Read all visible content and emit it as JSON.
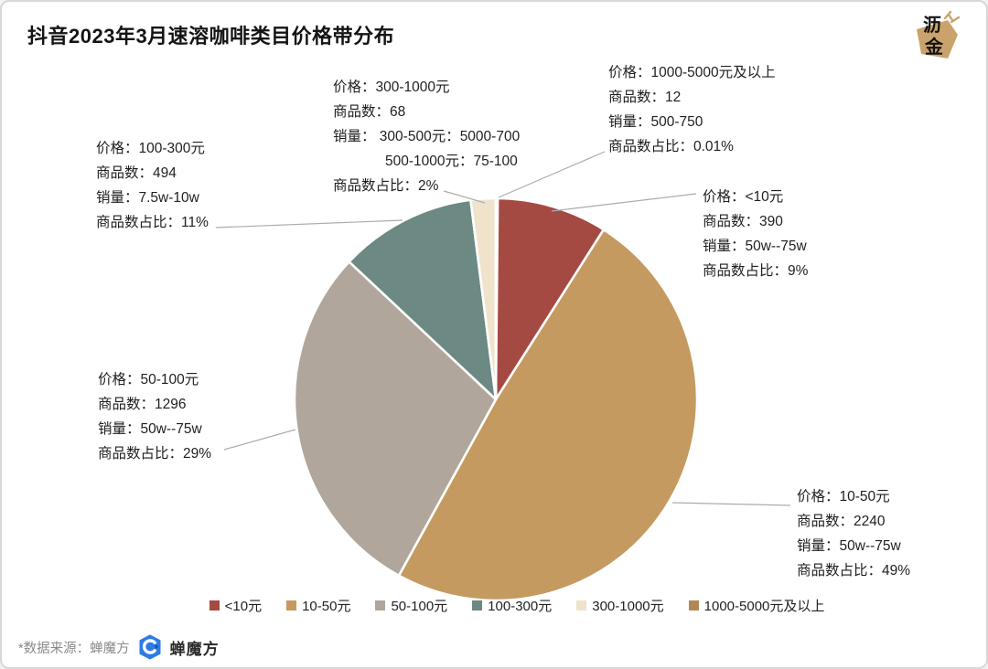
{
  "title": "抖音2023年3月速溶咖啡类目价格带分布",
  "logo": {
    "char1": "沥",
    "char2": "金"
  },
  "chart_data": {
    "type": "pie",
    "title": "抖音2023年3月速溶咖啡类目价格带分布",
    "legend_position": "bottom",
    "start_angle_deg_from_top": 0,
    "direction": "clockwise",
    "slices": [
      {
        "label": "<10元",
        "value_percent": 9,
        "color": "#A54A42",
        "items": 390,
        "sales": "50w--75w"
      },
      {
        "label": "10-50元",
        "value_percent": 49,
        "color": "#C49A60",
        "items": 2240,
        "sales": "50w--75w"
      },
      {
        "label": "50-100元",
        "value_percent": 29,
        "color": "#B0A69B",
        "items": 1296,
        "sales": "50w--75w"
      },
      {
        "label": "100-300元",
        "value_percent": 11,
        "color": "#6C8983",
        "items": 494,
        "sales": "7.5w-10w"
      },
      {
        "label": "300-1000元",
        "value_percent": 2,
        "color": "#EFE3CC",
        "items": 68,
        "sales": "300-500元：5000-700；500-1000元：75-100"
      },
      {
        "label": "1000-5000元及以上",
        "value_percent": 0.01,
        "color": "#B28756",
        "items": 12,
        "sales": "500-750"
      }
    ],
    "annotations": [
      {
        "id": "price-100-300",
        "lines": [
          "价格：100-300元",
          "商品数：494",
          "销量：7.5w-10w",
          "商品数占比：11%"
        ]
      },
      {
        "id": "price-300-1000",
        "lines": [
          "价格：300-1000元",
          "商品数：68",
          "销量： 300-500元：5000-700",
          "500-1000元：75-100",
          "商品数占比：2%"
        ]
      },
      {
        "id": "price-1000-5000",
        "lines": [
          "价格：1000-5000元及以上",
          "商品数：12",
          "销量：500-750",
          "商品数占比：0.01%"
        ]
      },
      {
        "id": "price-lt-10",
        "lines": [
          "价格：<10元",
          "商品数：390",
          "销量：50w--75w",
          "商品数占比：9%"
        ]
      },
      {
        "id": "price-50-100",
        "lines": [
          "价格：50-100元",
          "商品数：1296",
          "销量：50w--75w",
          "商品数占比：29%"
        ]
      },
      {
        "id": "price-10-50",
        "lines": [
          "价格：10-50元",
          "商品数：2240",
          "销量：50w--75w",
          "商品数占比：49%"
        ]
      }
    ]
  },
  "footer": {
    "source_note": "*数据来源：蝉魔方",
    "logo_text": "蝉魔方"
  }
}
